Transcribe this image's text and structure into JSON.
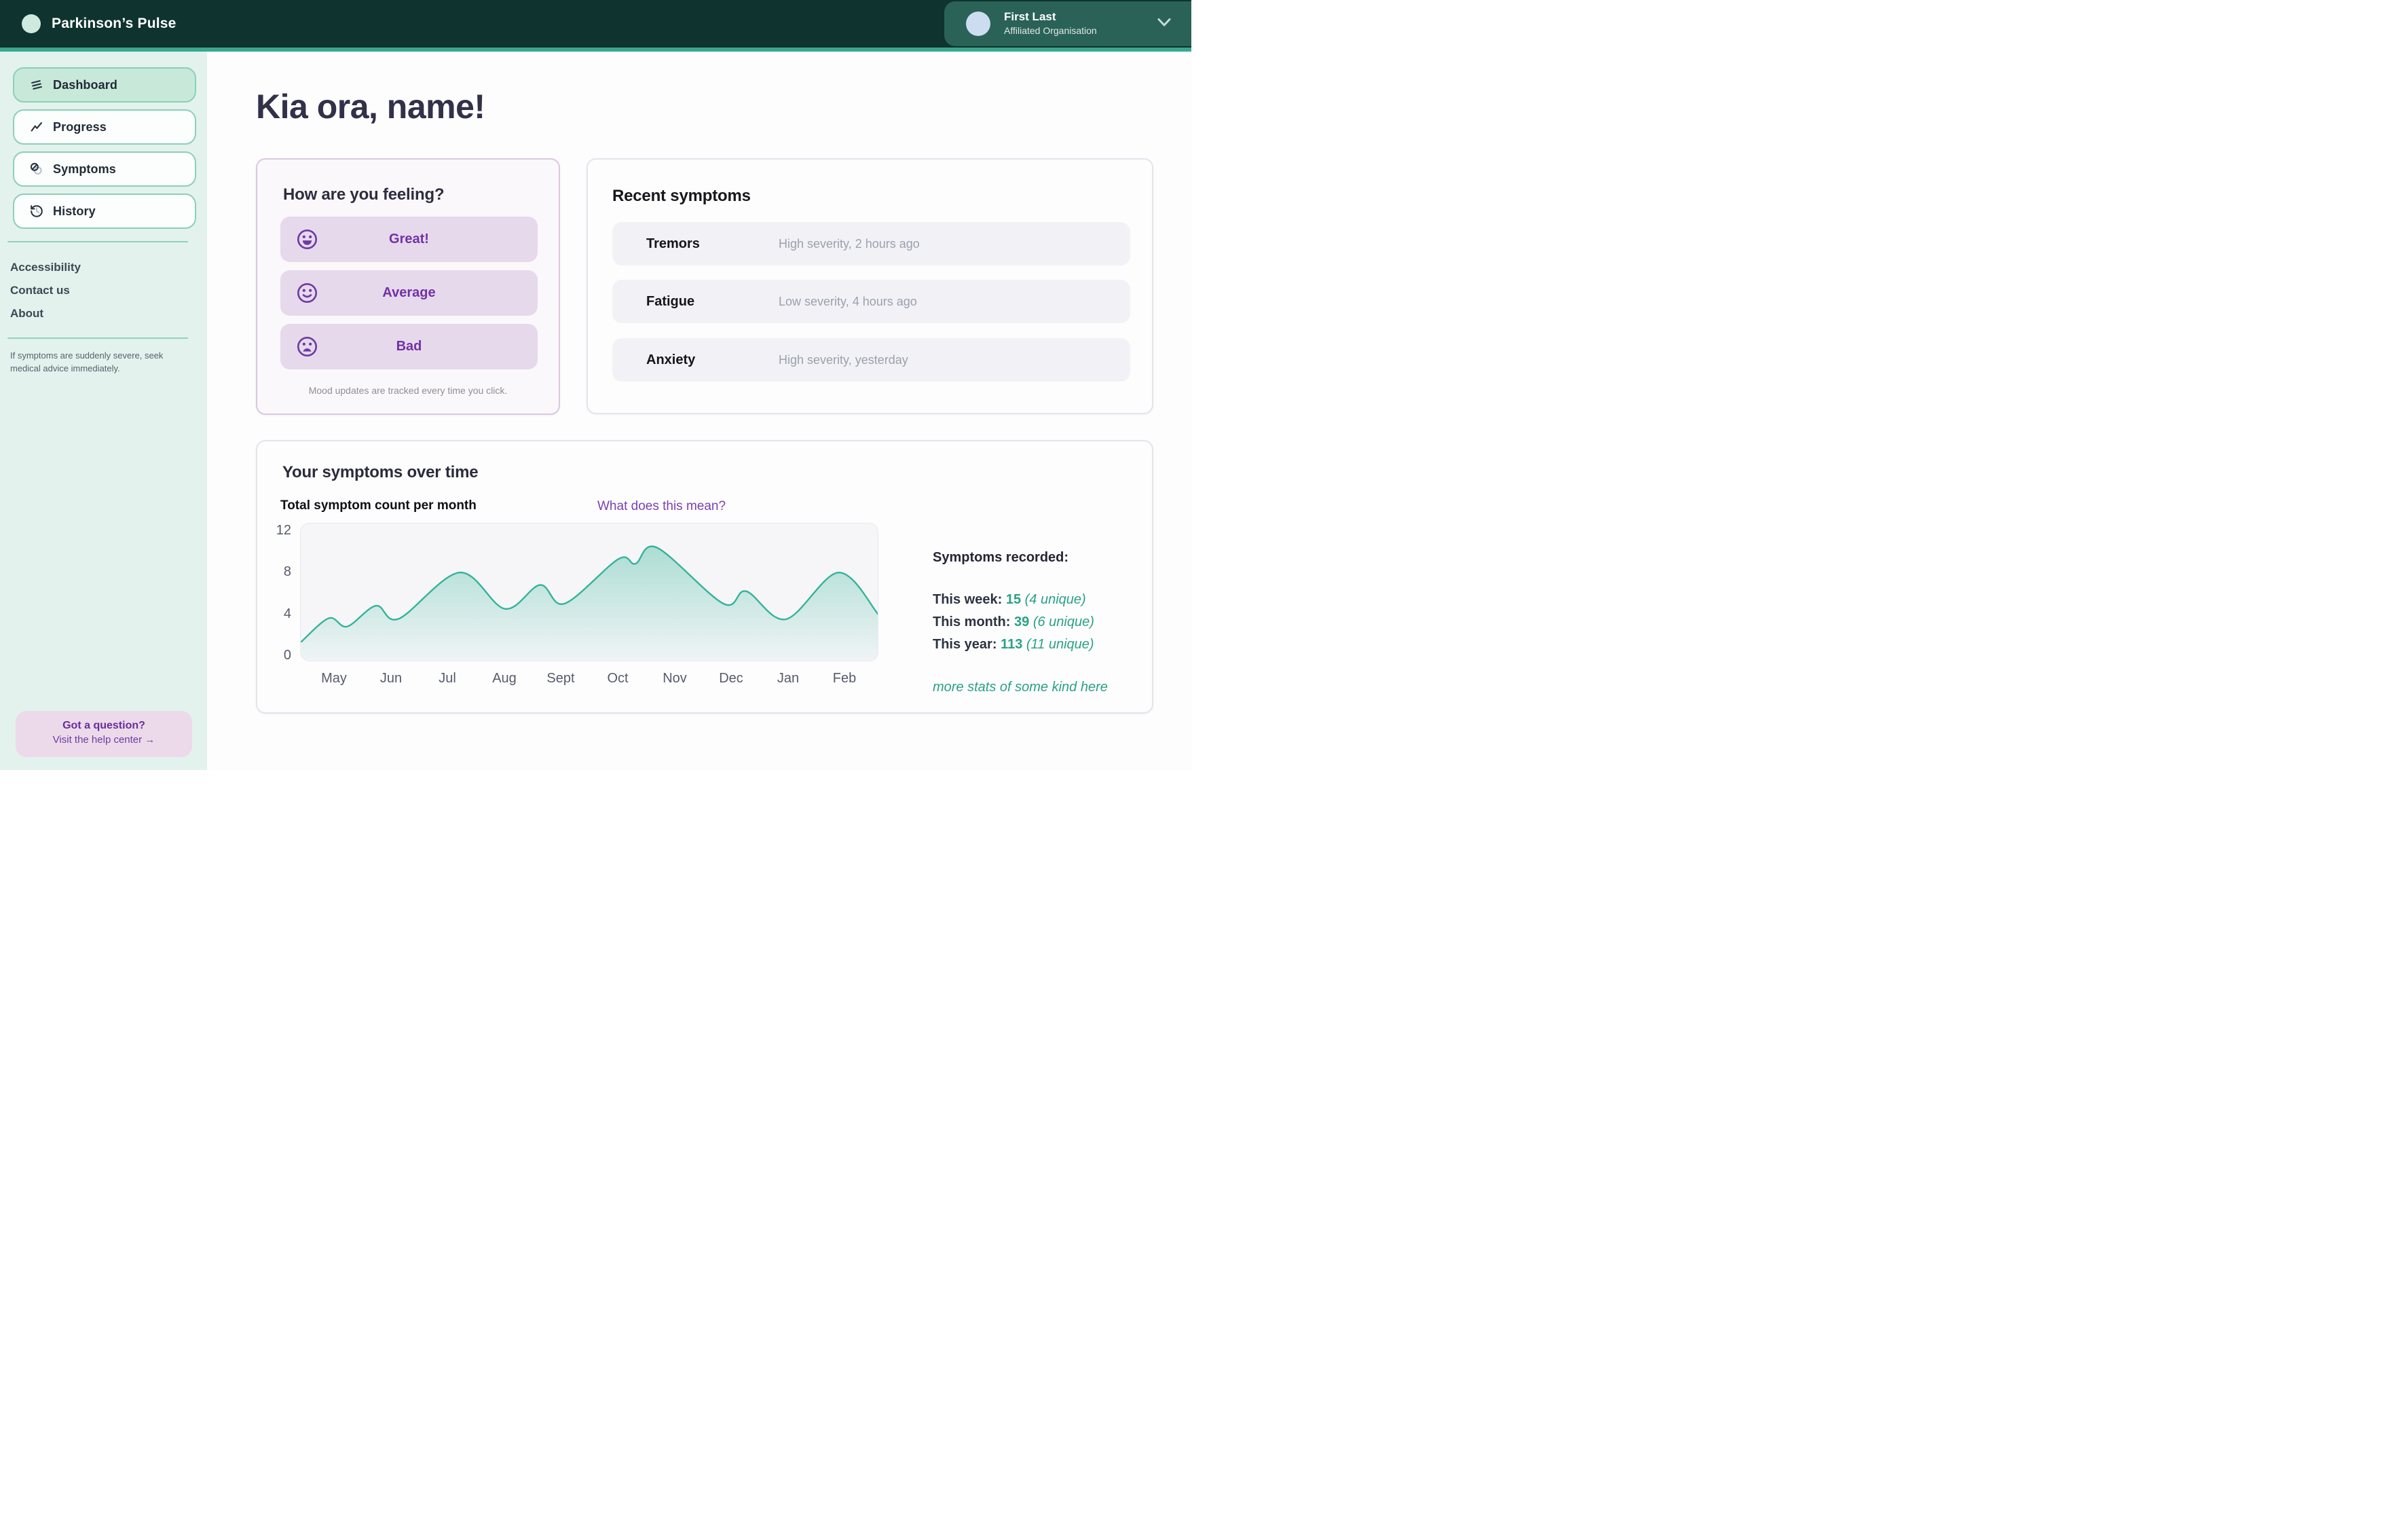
{
  "header": {
    "app_name": "Parkinson’s Pulse",
    "user": {
      "name": "First Last",
      "org": "Affiliated Organisation"
    }
  },
  "sidebar": {
    "nav": [
      {
        "label": "Dashboard",
        "icon": "dashboard-icon",
        "active": true
      },
      {
        "label": "Progress",
        "icon": "progress-icon",
        "active": false
      },
      {
        "label": "Symptoms",
        "icon": "symptoms-icon",
        "active": false
      },
      {
        "label": "History",
        "icon": "history-icon",
        "active": false
      }
    ],
    "links": [
      {
        "label": "Accessibility"
      },
      {
        "label": "Contact us"
      },
      {
        "label": "About"
      }
    ],
    "warning": "If symptoms are suddenly severe, seek medical advice immediately.",
    "help": {
      "title": "Got a question?",
      "link": "Visit the help center →"
    }
  },
  "main": {
    "greeting": "Kia ora, name!",
    "feeling_card": {
      "title": "How are you feeling?",
      "options": [
        {
          "label": "Great!",
          "icon": "smile-great-icon"
        },
        {
          "label": "Average",
          "icon": "smile-average-icon"
        },
        {
          "label": "Bad",
          "icon": "smile-bad-icon"
        }
      ],
      "caption": "Mood updates are tracked every time you click."
    },
    "recent_symptoms": {
      "title": "Recent symptoms",
      "rows": [
        {
          "name": "Tremors",
          "detail": "High severity, 2 hours ago"
        },
        {
          "name": "Fatigue",
          "detail": "Low severity, 4 hours ago"
        },
        {
          "name": "Anxiety",
          "detail": "High severity, yesterday"
        }
      ]
    },
    "symptoms_over_time": {
      "title": "Your symptoms over time",
      "link": "What does this mean?",
      "stats": {
        "heading": "Symptoms recorded:",
        "rows": [
          {
            "label": "This week:",
            "value": "15",
            "unique": "(4 unique)"
          },
          {
            "label": "This month:",
            "value": "39",
            "unique": "(6 unique)"
          },
          {
            "label": "This year:",
            "value": "113",
            "unique": "(11 unique)"
          }
        ],
        "more": "more stats of some kind here"
      }
    }
  },
  "chart_data": {
    "type": "area",
    "title": "Total symptom count per month",
    "categories": [
      "May",
      "Jun",
      "Jul",
      "Aug",
      "Sept",
      "Oct",
      "Nov",
      "Dec",
      "Jan",
      "Feb"
    ],
    "monthly_values": [
      3.6,
      3.7,
      7.6,
      4.5,
      5.1,
      9.3,
      8.9,
      5.6,
      3.6,
      7.7
    ],
    "points": [
      [
        -0.585,
        1.35
      ],
      [
        -0.1,
        3.6
      ],
      [
        0.22,
        2.8
      ],
      [
        0.73,
        4.8
      ],
      [
        1.13,
        3.55
      ],
      [
        2.2,
        8.0
      ],
      [
        3.0,
        4.5
      ],
      [
        3.62,
        6.8
      ],
      [
        4.05,
        5.0
      ],
      [
        5.0,
        9.3
      ],
      [
        5.3,
        8.85
      ],
      [
        5.68,
        10.4
      ],
      [
        6.85,
        5.0
      ],
      [
        7.25,
        6.2
      ],
      [
        7.95,
        3.5
      ],
      [
        8.88,
        8.0
      ],
      [
        9.6,
        3.95
      ]
    ],
    "yticks": [
      0,
      4,
      8,
      12
    ],
    "yticks_labels": [
      "12",
      "8",
      "4",
      "0"
    ],
    "ylim": [
      0,
      12
    ],
    "xlabel": "",
    "ylabel": "",
    "grid": false,
    "legend": false,
    "line_color": "#34b49a",
    "fill_color": "#34b49a"
  },
  "colors": {
    "header_bg": "#0f332e",
    "accent_teal": "#3aa78e",
    "sidebar_bg": "#e3f2ec",
    "nav_active_bg": "#c8e9da",
    "purple_accent": "#7331a6",
    "teal_text": "#2aa184"
  }
}
